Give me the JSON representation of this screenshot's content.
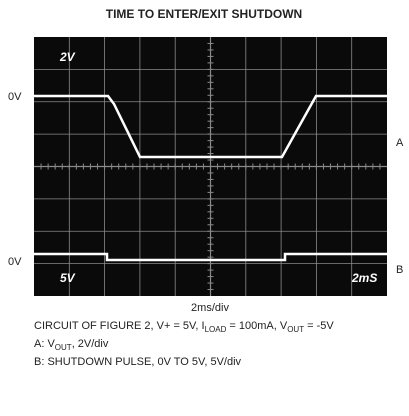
{
  "header": {
    "title": "TIME TO ENTER/EXIT SHUTDOWN"
  },
  "screen": {
    "scale_a": "2V",
    "scale_b": "5V",
    "timebase": "2mS"
  },
  "left_labels": [
    "0V",
    "0V"
  ],
  "right_labels": [
    "A",
    "B"
  ],
  "x_label": "2ms/div",
  "caption": {
    "line1": [
      "CIRCUIT OF FIGURE 2, V+ = 5V, I",
      "LOAD",
      " = 100mA, V",
      "OUT",
      " = -5V"
    ],
    "line2": [
      "A:  V",
      "OUT",
      ", 2V/div"
    ],
    "line3": "B:  SHUTDOWN PULSE, 0V TO 5V, 5V/div"
  }
}
